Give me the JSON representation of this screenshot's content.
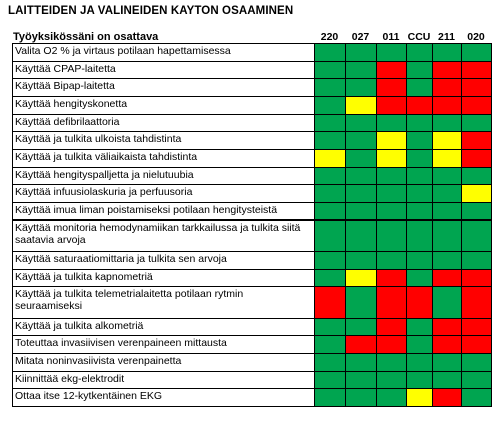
{
  "title": "LAITTEIDEN  JA VALINEIDEN  KAYTON OSAAMINEN",
  "colors": {
    "G": "#00a550",
    "R": "#ff0000",
    "Y": "#ffff00"
  },
  "legend_map": {
    "G": "green",
    "R": "red",
    "Y": "yellow"
  },
  "chart_data": {
    "type": "table",
    "header_label": "Työyksikössäni on osattava",
    "columns": [
      "220",
      "027",
      "011",
      "CCU",
      "211",
      "020"
    ],
    "rows": [
      {
        "label": "Valita O2 % ja virtaus potilaan hapettamisessa",
        "cells": [
          "G",
          "G",
          "G",
          "G",
          "G",
          "G"
        ],
        "tall": false
      },
      {
        "label": "Käyttää CPAP-laitetta",
        "cells": [
          "G",
          "G",
          "R",
          "G",
          "R",
          "R"
        ],
        "tall": false
      },
      {
        "label": "Käyttää Bipap-laitetta",
        "cells": [
          "G",
          "G",
          "R",
          "G",
          "R",
          "R"
        ],
        "tall": false
      },
      {
        "label": "Käyttää hengityskonetta",
        "cells": [
          "G",
          "Y",
          "R",
          "R",
          "R",
          "R"
        ],
        "tall": false
      },
      {
        "label": "Käyttää defibrilaattoria",
        "cells": [
          "G",
          "G",
          "G",
          "G",
          "G",
          "G"
        ],
        "tall": false
      },
      {
        "label": "Käyttää ja tulkita ulkoista tahdistinta",
        "cells": [
          "G",
          "G",
          "Y",
          "G",
          "Y",
          "R"
        ],
        "tall": false
      },
      {
        "label": "Käyttää ja tulkita väliaikaista tahdistinta",
        "cells": [
          "Y",
          "G",
          "Y",
          "G",
          "Y",
          "R"
        ],
        "tall": false
      },
      {
        "label": "Käyttää hengityspalljetta ja nielutuubia",
        "cells": [
          "G",
          "G",
          "G",
          "G",
          "G",
          "G"
        ],
        "tall": false
      },
      {
        "label": "Käyttää infuusiolaskuria ja perfuusoria",
        "cells": [
          "G",
          "G",
          "G",
          "G",
          "G",
          "Y"
        ],
        "tall": false
      },
      {
        "label": "Käyttää imua liman poistamiseksi potilaan hengitysteistä",
        "cells": [
          "G",
          "G",
          "G",
          "G",
          "G",
          "G"
        ],
        "tall": false
      },
      {
        "label": "Käyttää monitoria hemodynamiikan tarkkailussa ja tulkita siitä saatavia arvoja",
        "cells": [
          "G",
          "G",
          "G",
          "G",
          "G",
          "G"
        ],
        "tall": true
      },
      {
        "label": "Käyttää saturaatiomittaria ja tulkita sen arvoja",
        "cells": [
          "G",
          "G",
          "G",
          "G",
          "G",
          "G"
        ],
        "tall": false
      },
      {
        "label": "Käyttää ja tulkita kapnometriä",
        "cells": [
          "G",
          "Y",
          "R",
          "G",
          "R",
          "R"
        ],
        "tall": false
      },
      {
        "label": "Käyttää ja tulkita telemetrialaitetta potilaan rytmin seuraamiseksi",
        "cells": [
          "R",
          "G",
          "R",
          "R",
          "G",
          "R"
        ],
        "tall": true
      },
      {
        "label": "Käyttää ja tulkita alkometriä",
        "cells": [
          "G",
          "G",
          "R",
          "G",
          "R",
          "R"
        ],
        "tall": false
      },
      {
        "label": "Toteuttaa invasiivisen verenpaineen mittausta",
        "cells": [
          "G",
          "R",
          "R",
          "G",
          "R",
          "R"
        ],
        "tall": false
      },
      {
        "label": "Mitata noninvasiivista verenpainetta",
        "cells": [
          "G",
          "G",
          "G",
          "G",
          "G",
          "G"
        ],
        "tall": false
      },
      {
        "label": "Kiinnittää ekg-elektrodit",
        "cells": [
          "G",
          "G",
          "G",
          "G",
          "G",
          "G"
        ],
        "tall": false
      },
      {
        "label": "Ottaa itse 12-kytkentäinen EKG",
        "cells": [
          "G",
          "G",
          "G",
          "Y",
          "R",
          "G"
        ],
        "tall": false
      }
    ]
  }
}
